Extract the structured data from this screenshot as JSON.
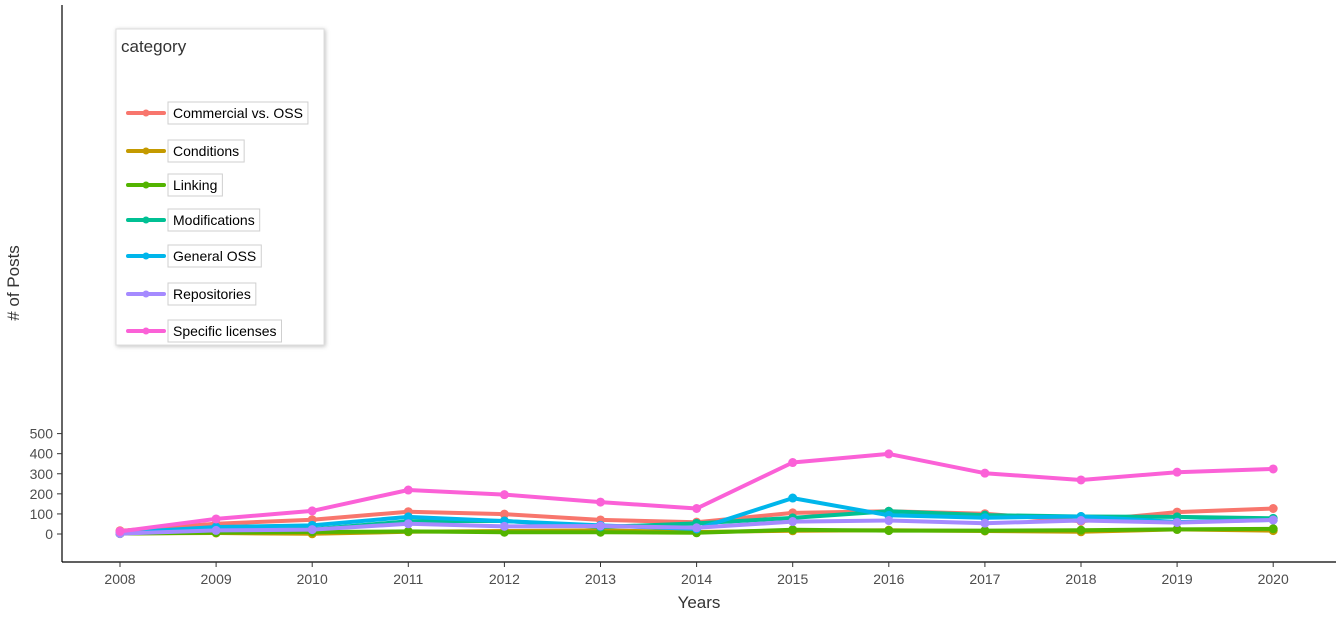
{
  "chart_data": {
    "type": "line",
    "xlabel": "Years",
    "ylabel": "# of Posts",
    "x": [
      "2008",
      "2009",
      "2010",
      "2011",
      "2012",
      "2013",
      "2014",
      "2015",
      "2016",
      "2017",
      "2018",
      "2019",
      "2020"
    ],
    "ylim": [
      0,
      500
    ],
    "yticks": [
      "0",
      "100",
      "200",
      "300",
      "400",
      "500"
    ],
    "grid": false,
    "legend": {
      "title": "category",
      "position": "top-left"
    },
    "series": [
      {
        "name": "Commercial vs. OSS",
        "color": "#F8766D",
        "values": [
          16,
          51,
          71,
          111,
          99,
          70,
          59,
          105,
          113,
          101,
          63,
          109,
          127
        ]
      },
      {
        "name": "Conditions",
        "color": "#C49A00",
        "values": [
          3,
          5,
          1,
          11,
          15,
          18,
          10,
          16,
          19,
          15,
          11,
          23,
          17
        ]
      },
      {
        "name": "Linking",
        "color": "#53B400",
        "values": [
          2,
          7,
          10,
          13,
          9,
          9,
          6,
          21,
          17,
          17,
          19,
          23,
          26
        ]
      },
      {
        "name": "Modifications",
        "color": "#00C094",
        "values": [
          4,
          19,
          23,
          63,
          65,
          35,
          53,
          80,
          113,
          94,
          87,
          85,
          78
        ]
      },
      {
        "name": "General OSS",
        "color": "#00B6EB",
        "values": [
          6,
          35,
          43,
          85,
          64,
          43,
          25,
          179,
          93,
          81,
          87,
          60,
          70
        ]
      },
      {
        "name": "Repositories",
        "color": "#A58AFF",
        "values": [
          2,
          18,
          22,
          51,
          38,
          40,
          31,
          62,
          67,
          54,
          67,
          57,
          70
        ]
      },
      {
        "name": "Specific licenses",
        "color": "#FB61D7",
        "values": [
          13,
          75,
          115,
          219,
          196,
          159,
          127,
          356,
          399,
          303,
          269,
          308,
          324
        ]
      }
    ]
  }
}
